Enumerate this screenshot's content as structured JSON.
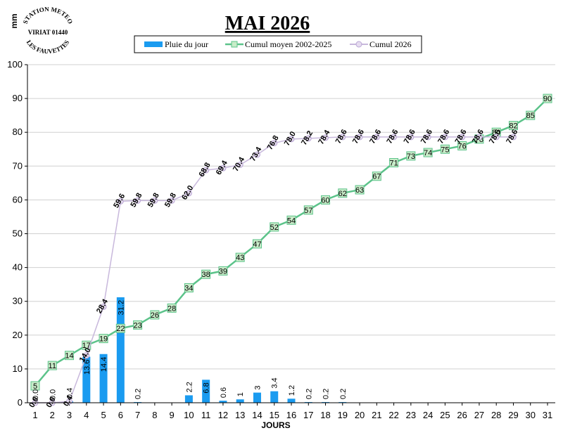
{
  "chart_data": {
    "type": "bar",
    "title": "MAI 2026",
    "xlabel": "JOURS",
    "ylabel": "mm",
    "ylim": [
      0,
      100
    ],
    "yticks": [
      0,
      10,
      20,
      30,
      40,
      50,
      60,
      70,
      80,
      90,
      100
    ],
    "categories": [
      "1",
      "2",
      "3",
      "4",
      "5",
      "6",
      "7",
      "8",
      "9",
      "10",
      "11",
      "12",
      "13",
      "14",
      "15",
      "16",
      "17",
      "18",
      "19",
      "20",
      "21",
      "22",
      "23",
      "24",
      "25",
      "26",
      "27",
      "28",
      "29",
      "30",
      "31"
    ],
    "legend_position": "top-center",
    "series": [
      {
        "name": "Pluie du jour",
        "type": "bar",
        "color": "#1a9bf0",
        "values": [
          0,
          0,
          0.4,
          13.6,
          14.4,
          31.2,
          0.2,
          0,
          0,
          2.2,
          6.8,
          0.6,
          1,
          3,
          3.4,
          1.2,
          0.2,
          0.2,
          0.2,
          null,
          null,
          null,
          null,
          null,
          null,
          null,
          null,
          null,
          null,
          null,
          null
        ],
        "labels": [
          "0.0",
          "0.0",
          "0.4",
          "13.6",
          "14.4",
          "31.2",
          "0.2",
          "",
          "",
          "2.2",
          "6.8",
          "0.6",
          "1",
          "3",
          "3.4",
          "1.2",
          "0.2",
          "0.2",
          "0.2",
          "",
          "",
          "",
          "",
          "",
          "",
          "",
          "",
          "",
          "",
          "",
          ""
        ]
      },
      {
        "name": "Cumul moyen 2002-2025",
        "type": "line",
        "color": "#5cc38a",
        "values": [
          5,
          11,
          14,
          17,
          19,
          22,
          23,
          26,
          28,
          34,
          38,
          39,
          43,
          47,
          52,
          54,
          57,
          60,
          62,
          63,
          67,
          71,
          73,
          74,
          75,
          76,
          78,
          80,
          82,
          85,
          90
        ],
        "labels": [
          "5",
          "11",
          "14",
          "17",
          "19",
          "22",
          "23",
          "26",
          "28",
          "34",
          "38",
          "39",
          "43",
          "47",
          "52",
          "54",
          "57",
          "60",
          "62",
          "63",
          "67",
          "71",
          "73",
          "74",
          "75",
          "76",
          "78",
          "80",
          "82",
          "85",
          "90"
        ]
      },
      {
        "name": "Cumul 2026",
        "type": "line",
        "color": "#c8b8dc",
        "values": [
          0,
          0,
          0.4,
          14.0,
          28.4,
          59.6,
          59.8,
          59.8,
          59.8,
          62.0,
          68.8,
          69.4,
          70.4,
          73.4,
          76.8,
          78.0,
          78.2,
          78.4,
          78.6,
          78.6,
          78.6,
          78.6,
          78.6,
          78.6,
          78.6,
          78.6,
          78.6,
          78.6,
          78.6,
          null,
          null
        ],
        "labels": [
          "0.0",
          "0.0",
          "0.4",
          "14.0",
          "28.4",
          "59.6",
          "59.8",
          "59.8",
          "59.8",
          "62.0",
          "68.8",
          "69.4",
          "70.4",
          "73.4",
          "76.8",
          "78.0",
          "78.2",
          "78.4",
          "78.6",
          "78.6",
          "78.6",
          "78.6",
          "78.6",
          "78.6",
          "78.6",
          "78.6",
          "78.6",
          "78.6",
          "78.6",
          "",
          ""
        ]
      }
    ]
  },
  "logo": {
    "top_text": "STATION METEO",
    "middle_text": "VIRIAT 01440",
    "bottom_text": "LES FAUVETTES"
  }
}
